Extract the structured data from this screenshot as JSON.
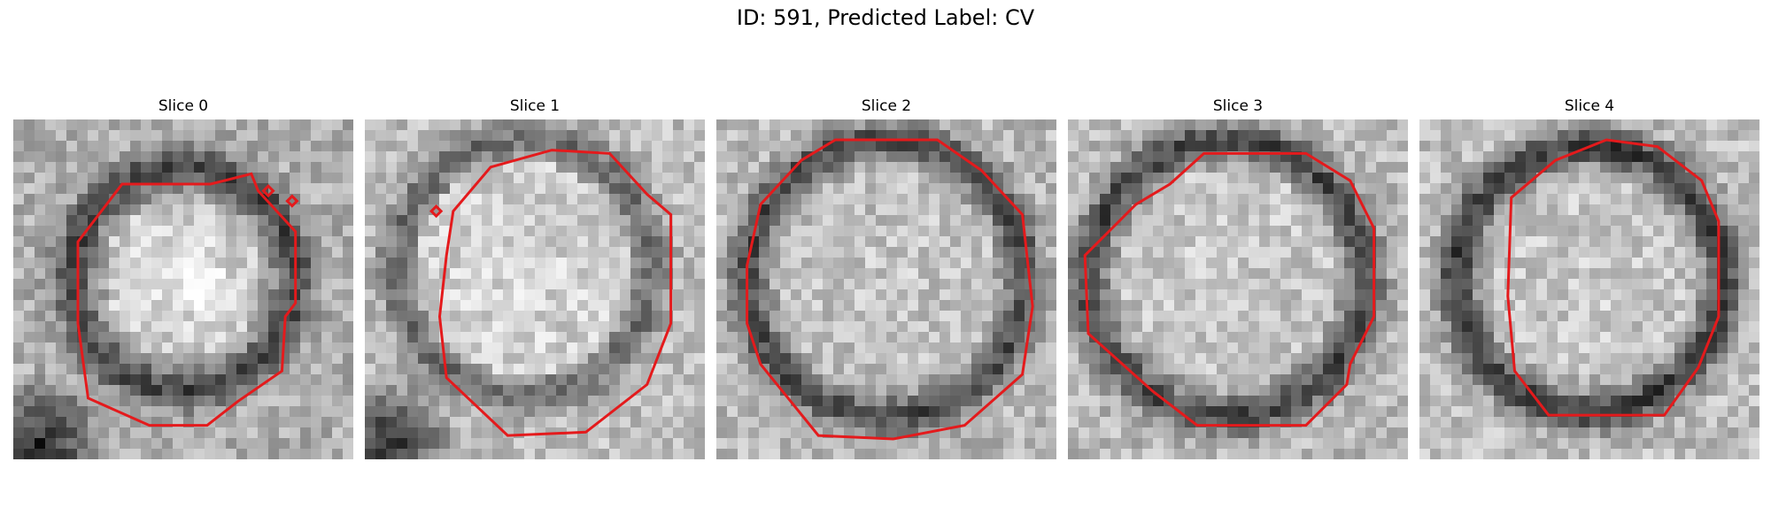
{
  "figure": {
    "title": "ID: 591, Predicted Label: CV",
    "contour_color": "#e41a1c"
  },
  "slices": [
    {
      "label": "Slice 0"
    },
    {
      "label": "Slice 1"
    },
    {
      "label": "Slice 2"
    },
    {
      "label": "Slice 3"
    },
    {
      "label": "Slice 4"
    }
  ]
}
